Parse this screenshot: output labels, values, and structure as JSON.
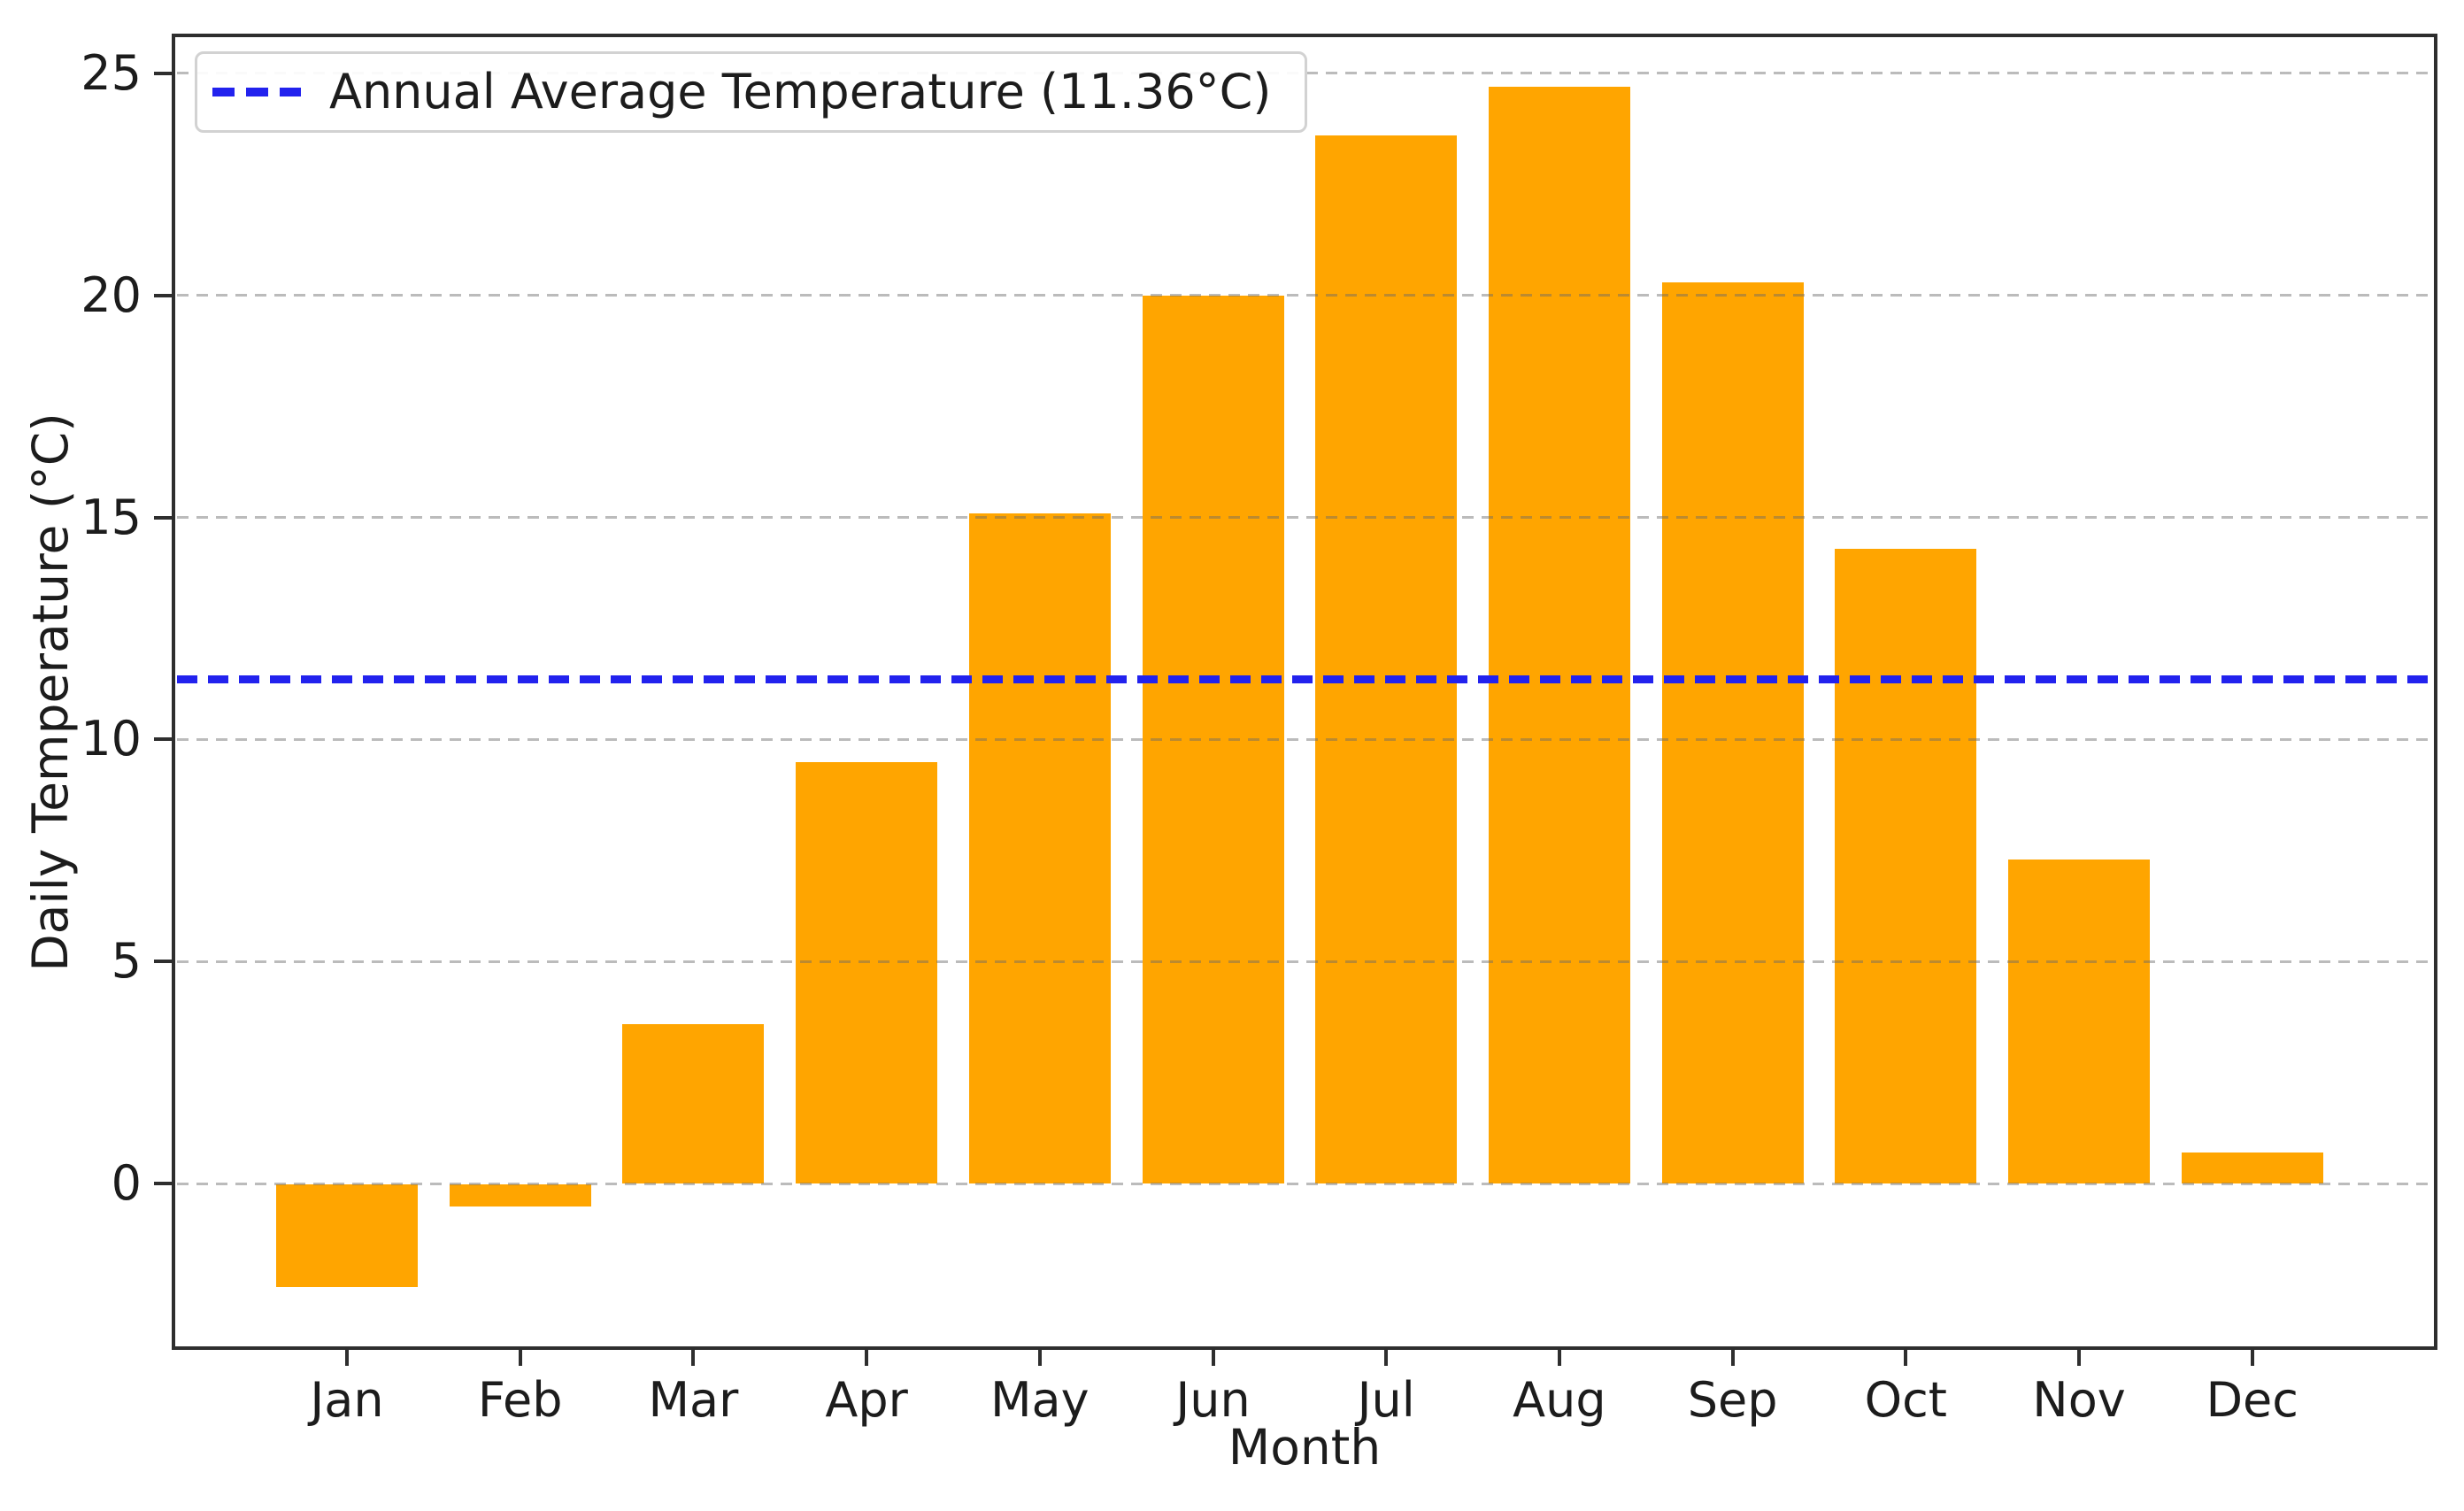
{
  "chart_data": {
    "type": "bar",
    "title": "",
    "xlabel": "Month",
    "ylabel": "Daily Temperature (°C)",
    "categories": [
      "Jan",
      "Feb",
      "Mar",
      "Apr",
      "May",
      "Jun",
      "Jul",
      "Aug",
      "Sep",
      "Oct",
      "Nov",
      "Dec"
    ],
    "values": [
      -2.3,
      -0.5,
      3.6,
      9.5,
      15.1,
      20.0,
      23.6,
      24.7,
      20.3,
      14.3,
      7.3,
      0.7
    ],
    "yticks": [
      0,
      5,
      10,
      15,
      20,
      25
    ],
    "ylim": [
      -3.7,
      25.85
    ],
    "grid": {
      "axis": "y",
      "style": "dashed",
      "color": "#bdbdbd",
      "above_bars": true
    },
    "bar_color": "#FFA500",
    "average_line": {
      "value": 11.36,
      "style": "dashed",
      "color": "#2222EE"
    },
    "legend": {
      "position": "upper left",
      "entries": [
        {
          "icon": "dashed-line-icon",
          "label": "Annual Average Temperature (11.36°C)",
          "color": "#2222EE"
        }
      ]
    },
    "spine_color": "#2e2e2e",
    "text_color": "#1c1c1c"
  }
}
